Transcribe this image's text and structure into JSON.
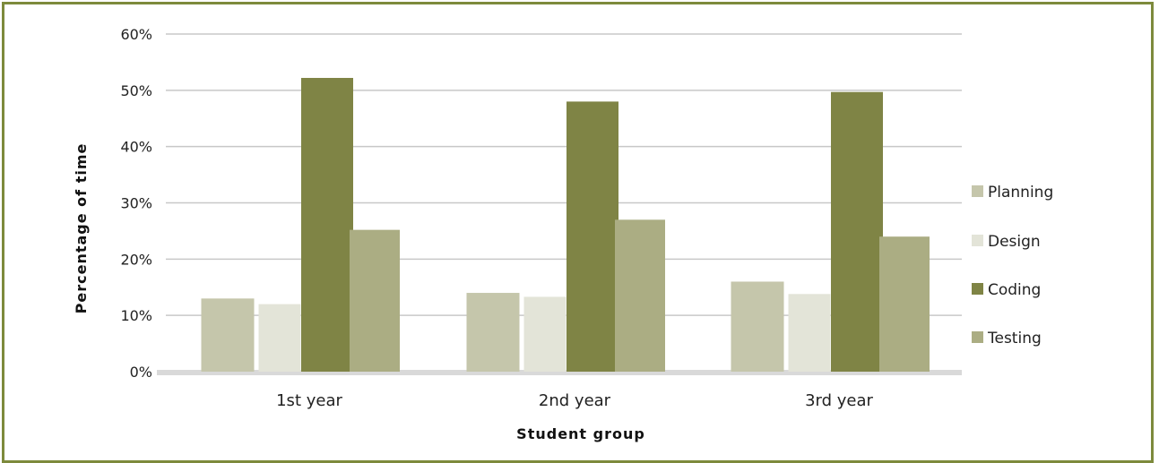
{
  "chart_data": {
    "type": "bar",
    "categories": [
      "1st year",
      "2nd year",
      "3rd year"
    ],
    "series": [
      {
        "name": "Planning",
        "values": [
          13,
          14,
          16
        ],
        "color": "#c5c6ab"
      },
      {
        "name": "Design",
        "values": [
          12,
          13.3,
          13.8
        ],
        "color": "#e3e4d8"
      },
      {
        "name": "Coding",
        "values": [
          52.2,
          48,
          49.7
        ],
        "color": "#7f8445"
      },
      {
        "name": "Testing",
        "values": [
          25.2,
          27,
          24
        ],
        "color": "#abad83"
      }
    ],
    "y_ticks": [
      "0%",
      "10%",
      "20%",
      "30%",
      "40%",
      "50%",
      "60%"
    ],
    "ylim": [
      0,
      60
    ],
    "xlabel": "Student group",
    "ylabel": "Percentage of time",
    "grid": true,
    "legend_position": "right",
    "frame_color": "#7d8a3c"
  }
}
